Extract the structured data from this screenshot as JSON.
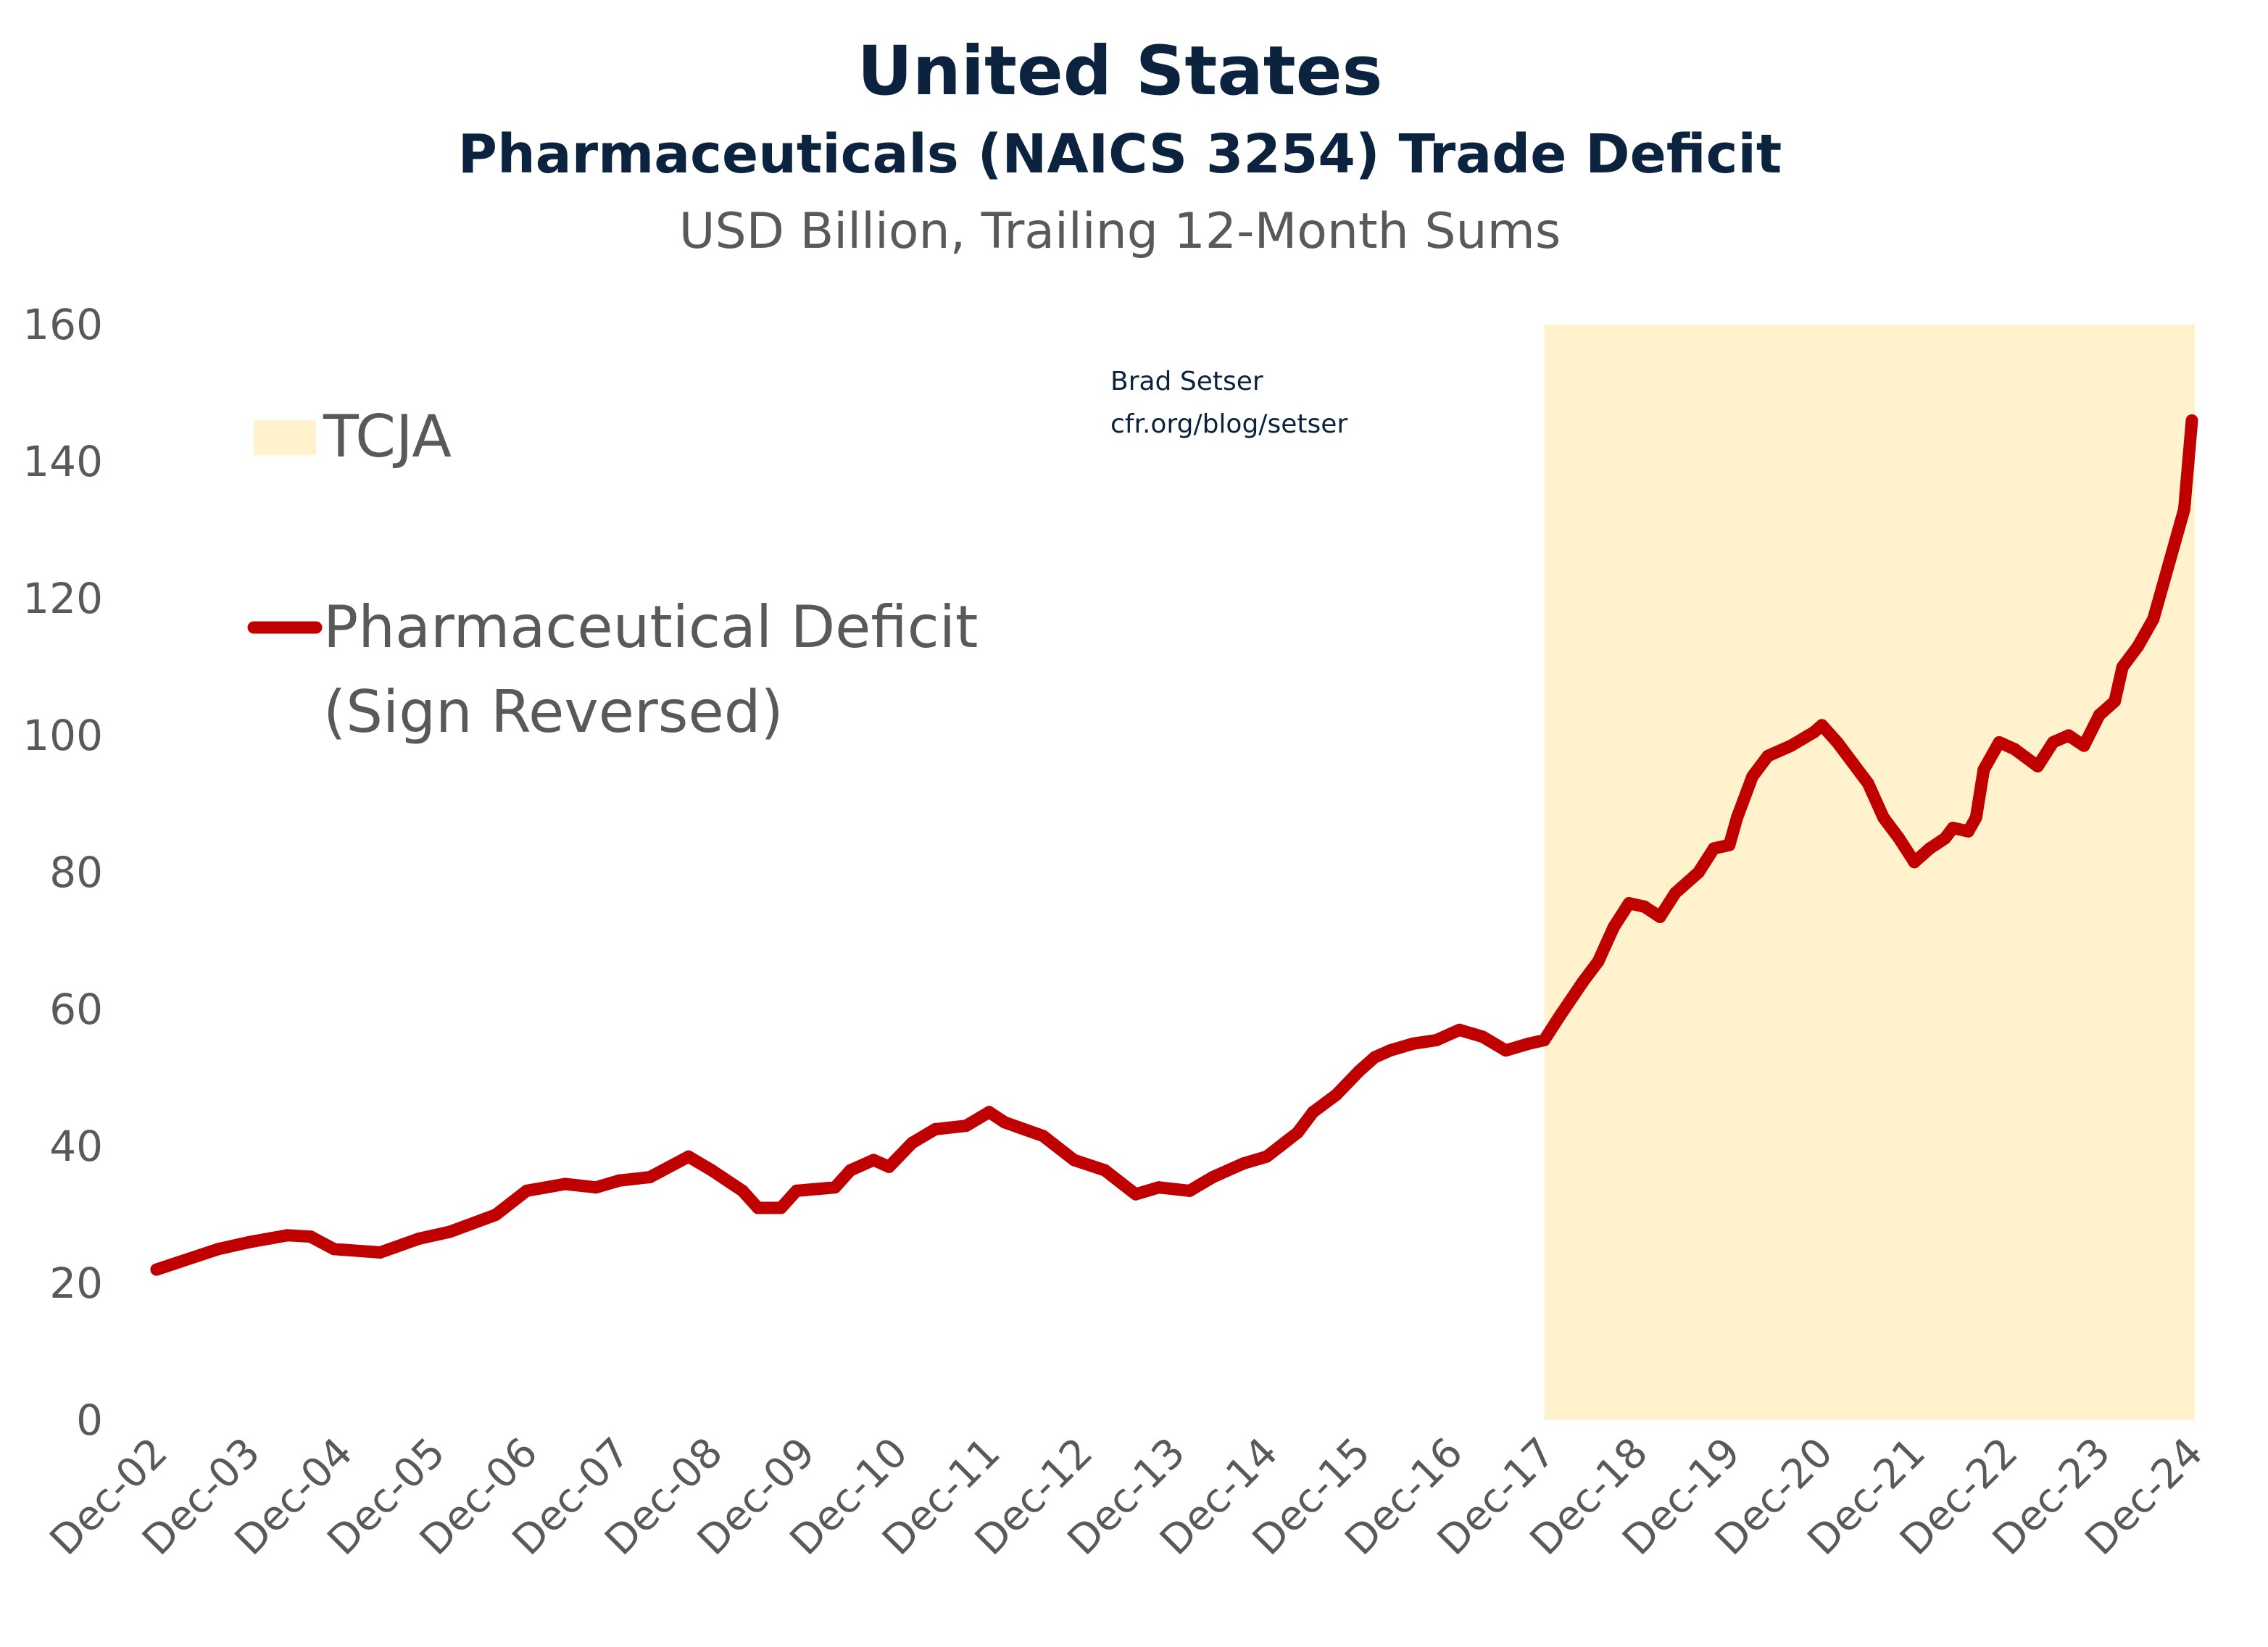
{
  "chart_data": {
    "type": "line",
    "title": "United States",
    "subtitle": "Pharmaceuticals (NAICS 3254) Trade Deficit",
    "units": "USD Billion, Trailing 12-Month Sums",
    "credit": [
      "Brad Setser",
      "cfr.org/blog/setser"
    ],
    "xlabel": "",
    "ylabel": "",
    "ylim": [
      0,
      160
    ],
    "yticks": [
      0,
      20,
      40,
      60,
      80,
      100,
      120,
      140,
      160
    ],
    "xticks": [
      "Dec-02",
      "Dec-03",
      "Dec-04",
      "Dec-05",
      "Dec-06",
      "Dec-07",
      "Dec-08",
      "Dec-09",
      "Dec-10",
      "Dec-11",
      "Dec-12",
      "Dec-13",
      "Dec-14",
      "Dec-15",
      "Dec-16",
      "Dec-17",
      "Dec-18",
      "Dec-19",
      "Dec-20",
      "Dec-21",
      "Dec-22",
      "Dec-23",
      "Dec-24"
    ],
    "xrange": [
      "2002-12",
      "2024-12"
    ],
    "grid": false,
    "legend_placement": "top-left",
    "shaded_region": {
      "name": "TCJA",
      "from": "2017-12",
      "to": "2024-12",
      "color": "#fff2cc"
    },
    "series": [
      {
        "name": "Pharmaceutical Deficit (Sign Reversed)",
        "legend_lines": [
          "Pharmaceutical Deficit",
          "(Sign Reversed)"
        ],
        "color": "#c00000",
        "x": [
          "2002-12",
          "2003-08",
          "2003-12",
          "2004-05",
          "2004-08",
          "2004-11",
          "2005-05",
          "2005-10",
          "2006-02",
          "2006-08",
          "2006-12",
          "2007-05",
          "2007-09",
          "2007-12",
          "2008-04",
          "2008-09",
          "2008-12",
          "2009-04",
          "2009-06",
          "2009-09",
          "2009-11",
          "2010-04",
          "2010-06",
          "2010-09",
          "2010-11",
          "2011-02",
          "2011-05",
          "2011-09",
          "2011-12",
          "2012-02",
          "2012-07",
          "2012-11",
          "2013-03",
          "2013-07",
          "2013-10",
          "2014-02",
          "2014-05",
          "2014-09",
          "2014-12",
          "2015-04",
          "2015-06",
          "2015-09",
          "2015-12",
          "2016-02",
          "2016-04",
          "2016-07",
          "2016-10",
          "2017-01",
          "2017-04",
          "2017-07",
          "2017-10",
          "2017-12",
          "2018-02",
          "2018-05",
          "2018-07",
          "2018-09",
          "2018-11",
          "2019-01",
          "2019-03",
          "2019-05",
          "2019-08",
          "2019-10",
          "2019-12",
          "2020-01",
          "2020-03",
          "2020-05",
          "2020-08",
          "2020-11",
          "2020-12",
          "2021-02",
          "2021-04",
          "2021-06",
          "2021-08",
          "2021-10",
          "2021-12",
          "2022-02",
          "2022-04",
          "2022-05",
          "2022-07",
          "2022-08",
          "2022-09",
          "2022-11",
          "2023-01",
          "2023-04",
          "2023-06",
          "2023-08",
          "2023-10",
          "2023-12",
          "2024-02",
          "2024-03",
          "2024-05",
          "2024-07",
          "2024-09",
          "2024-11",
          "2024-12"
        ],
        "values": [
          22,
          25,
          26,
          27,
          26.8,
          25,
          24.5,
          26.5,
          27.5,
          30,
          33.5,
          34.5,
          34,
          35,
          35.5,
          38.5,
          36.5,
          33.5,
          31,
          31,
          33.5,
          34,
          36.5,
          38,
          37,
          40.5,
          42.5,
          43,
          45,
          43.5,
          41.5,
          38,
          36.5,
          33,
          34,
          33.5,
          35.5,
          37.5,
          38.5,
          42,
          45,
          47.5,
          51,
          53,
          54,
          55,
          55.5,
          57,
          56,
          54,
          55,
          55.5,
          59,
          64,
          67,
          72,
          75.5,
          75,
          73.5,
          77,
          80,
          83.5,
          84,
          88,
          94,
          97,
          98.5,
          100.5,
          101.5,
          99,
          96,
          93,
          88,
          85,
          81.5,
          83.5,
          85,
          86.5,
          86,
          88,
          95,
          99,
          98,
          95.5,
          99,
          100,
          98.5,
          103,
          105,
          110,
          113,
          117,
          125,
          133,
          146
        ]
      }
    ]
  }
}
